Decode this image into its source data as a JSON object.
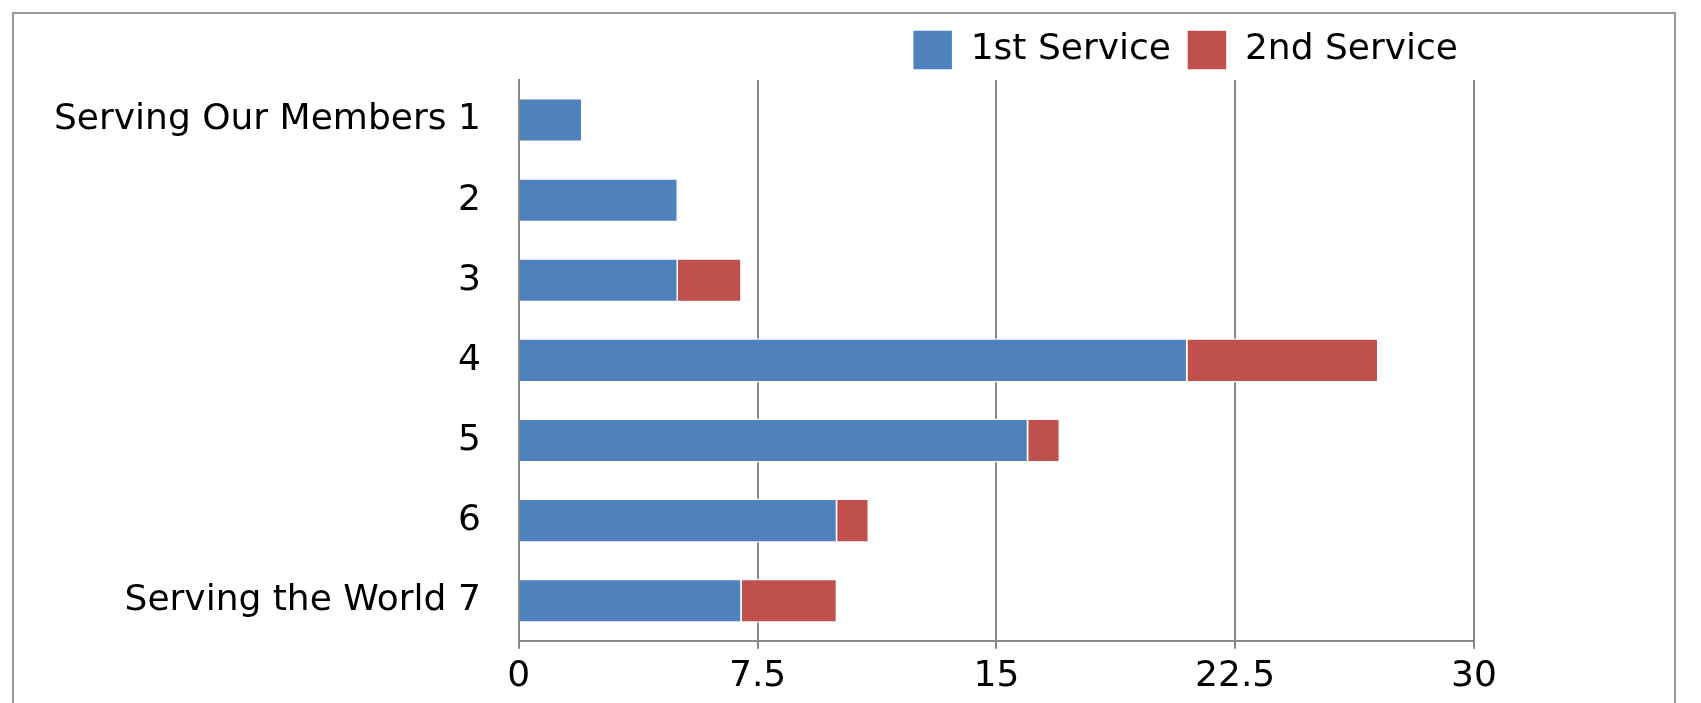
{
  "chart_data": {
    "type": "bar",
    "orientation": "horizontal",
    "stacked": true,
    "categories": [
      "Serving Our Members 1",
      "2",
      "3",
      "4",
      "5",
      "6",
      "Serving the World 7"
    ],
    "series": [
      {
        "name": "1st Service",
        "color": "#4f81bd",
        "values": [
          2,
          5,
          5,
          21,
          16,
          10,
          7
        ]
      },
      {
        "name": "2nd Service",
        "color": "#c0504d",
        "values": [
          0,
          0,
          2,
          6,
          1,
          1,
          3
        ]
      }
    ],
    "xlim": [
      0,
      30
    ],
    "xticks": [
      0,
      7.5,
      15,
      22.5,
      30
    ],
    "grid": "x",
    "legend": "top right"
  }
}
